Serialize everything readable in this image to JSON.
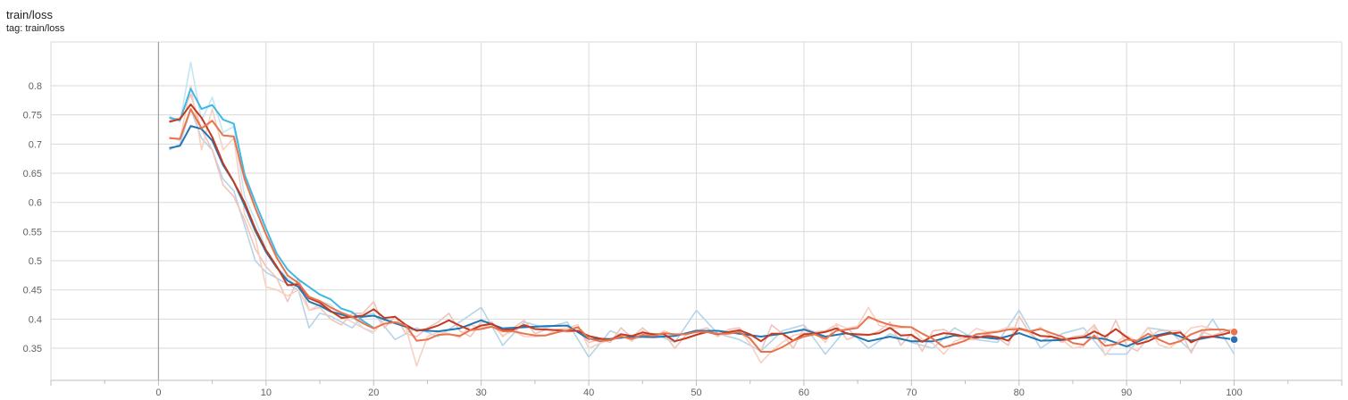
{
  "header": {
    "title": "train/loss",
    "tag": "tag: train/loss"
  },
  "chart_data": {
    "type": "line",
    "title": "train/loss",
    "xlabel": "",
    "ylabel": "",
    "xlim": [
      -10,
      110
    ],
    "ylim": [
      0.295,
      0.875
    ],
    "x_ticks": [
      0,
      10,
      20,
      30,
      40,
      50,
      60,
      70,
      80,
      90,
      100
    ],
    "y_ticks": [
      0.35,
      0.4,
      0.45,
      0.5,
      0.55,
      0.6,
      0.65,
      0.7,
      0.75,
      0.8
    ],
    "grid": true,
    "smoothing": true,
    "series": [
      {
        "color": "#1f77b4",
        "raw_color": "#b6d4e8",
        "x": [
          1,
          2,
          3,
          4,
          5,
          6,
          7,
          8,
          9,
          10,
          11,
          12,
          13,
          14,
          15,
          16,
          17,
          18,
          19,
          20,
          22,
          24,
          26,
          28,
          30,
          32,
          34,
          36,
          38,
          40,
          42,
          44,
          46,
          48,
          50,
          52,
          54,
          56,
          58,
          60,
          62,
          64,
          66,
          68,
          70,
          72,
          74,
          76,
          78,
          80,
          82,
          84,
          86,
          88,
          90,
          92,
          94,
          96,
          98,
          100
        ],
        "smoothed": [
          0.693,
          0.697,
          0.731,
          0.726,
          0.706,
          0.664,
          0.635,
          0.595,
          0.551,
          0.515,
          0.488,
          0.466,
          0.455,
          0.43,
          0.423,
          0.413,
          0.408,
          0.403,
          0.404,
          0.406,
          0.393,
          0.381,
          0.379,
          0.384,
          0.398,
          0.384,
          0.386,
          0.388,
          0.389,
          0.366,
          0.366,
          0.37,
          0.369,
          0.371,
          0.38,
          0.38,
          0.375,
          0.37,
          0.375,
          0.382,
          0.37,
          0.376,
          0.362,
          0.37,
          0.362,
          0.362,
          0.372,
          0.37,
          0.366,
          0.376,
          0.363,
          0.364,
          0.369,
          0.366,
          0.353,
          0.369,
          0.377,
          0.363,
          0.37,
          0.365
        ],
        "raw": [
          0.69,
          0.7,
          0.76,
          0.71,
          0.69,
          0.64,
          0.62,
          0.56,
          0.5,
          0.48,
          0.47,
          0.46,
          0.45,
          0.385,
          0.41,
          0.405,
          0.395,
          0.385,
          0.405,
          0.41,
          0.365,
          0.385,
          0.37,
          0.395,
          0.42,
          0.355,
          0.395,
          0.385,
          0.395,
          0.335,
          0.38,
          0.365,
          0.375,
          0.36,
          0.415,
          0.375,
          0.365,
          0.345,
          0.38,
          0.39,
          0.34,
          0.385,
          0.35,
          0.375,
          0.36,
          0.35,
          0.385,
          0.365,
          0.36,
          0.415,
          0.35,
          0.375,
          0.385,
          0.34,
          0.34,
          0.385,
          0.38,
          0.345,
          0.4,
          0.34
        ]
      },
      {
        "color": "#3fb8e3",
        "raw_color": "#c3e6f4",
        "x": [
          1,
          2,
          3,
          4,
          5,
          6,
          7,
          8,
          9,
          10,
          11,
          12,
          13,
          14,
          15,
          16,
          17,
          18,
          19,
          20
        ],
        "smoothed": [
          0.745,
          0.741,
          0.795,
          0.76,
          0.767,
          0.742,
          0.735,
          0.648,
          0.6,
          0.555,
          0.512,
          0.485,
          0.468,
          0.455,
          0.442,
          0.434,
          0.418,
          0.412,
          0.397,
          0.385
        ],
        "raw": [
          0.748,
          0.738,
          0.84,
          0.74,
          0.78,
          0.72,
          0.73,
          0.61,
          0.57,
          0.52,
          0.49,
          0.47,
          0.455,
          0.44,
          0.43,
          0.425,
          0.405,
          0.405,
          0.385,
          0.375
        ]
      },
      {
        "color": "#c23b22",
        "raw_color": "#efc4bb",
        "x": [
          1,
          2,
          3,
          4,
          5,
          6,
          7,
          8,
          9,
          10,
          11,
          12,
          13,
          14,
          15,
          16,
          17,
          18,
          19,
          20,
          21,
          22,
          23,
          24,
          25,
          26,
          27,
          28,
          29,
          30,
          31,
          32,
          33,
          34,
          35,
          36,
          37,
          38,
          39,
          40,
          41,
          42,
          43,
          44,
          45,
          46,
          47,
          48,
          49,
          50,
          51,
          52,
          53,
          54,
          55,
          56,
          57,
          58,
          59,
          60,
          61,
          62,
          63,
          64,
          65,
          66,
          67,
          68,
          69,
          70,
          71,
          72,
          73,
          74,
          75,
          76,
          77,
          78,
          79,
          80,
          81,
          82,
          83,
          84,
          85,
          86,
          87,
          88,
          89,
          90,
          91,
          92,
          93,
          94,
          95,
          96,
          97,
          98,
          99,
          100
        ],
        "smoothed": [
          0.738,
          0.743,
          0.768,
          0.745,
          0.712,
          0.667,
          0.635,
          0.6,
          0.555,
          0.518,
          0.49,
          0.458,
          0.46,
          0.436,
          0.428,
          0.414,
          0.402,
          0.404,
          0.406,
          0.417,
          0.402,
          0.404,
          0.39,
          0.38,
          0.383,
          0.389,
          0.398,
          0.389,
          0.381,
          0.389,
          0.392,
          0.381,
          0.382,
          0.39,
          0.383,
          0.382,
          0.381,
          0.38,
          0.38,
          0.371,
          0.367,
          0.364,
          0.374,
          0.371,
          0.377,
          0.374,
          0.374,
          0.362,
          0.367,
          0.373,
          0.378,
          0.374,
          0.378,
          0.381,
          0.374,
          0.362,
          0.375,
          0.375,
          0.363,
          0.374,
          0.375,
          0.378,
          0.384,
          0.375,
          0.374,
          0.373,
          0.376,
          0.385,
          0.372,
          0.373,
          0.361,
          0.371,
          0.376,
          0.374,
          0.37,
          0.368,
          0.371,
          0.369,
          0.363,
          0.384,
          0.379,
          0.371,
          0.37,
          0.365,
          0.367,
          0.369,
          0.379,
          0.37,
          0.383,
          0.369,
          0.357,
          0.362,
          0.371,
          0.375,
          0.377,
          0.36,
          0.369,
          0.37,
          0.374,
          0.379
        ],
        "raw": [
          0.74,
          0.745,
          0.785,
          0.725,
          0.69,
          0.63,
          0.61,
          0.57,
          0.52,
          0.49,
          0.47,
          0.43,
          0.47,
          0.415,
          0.42,
          0.4,
          0.39,
          0.41,
          0.41,
          0.43,
          0.385,
          0.405,
          0.375,
          0.37,
          0.385,
          0.395,
          0.41,
          0.38,
          0.37,
          0.395,
          0.395,
          0.37,
          0.385,
          0.398,
          0.375,
          0.382,
          0.38,
          0.378,
          0.38,
          0.36,
          0.365,
          0.36,
          0.385,
          0.368,
          0.385,
          0.37,
          0.375,
          0.35,
          0.372,
          0.38,
          0.385,
          0.37,
          0.382,
          0.385,
          0.365,
          0.345,
          0.39,
          0.375,
          0.35,
          0.385,
          0.378,
          0.38,
          0.39,
          0.365,
          0.372,
          0.372,
          0.38,
          0.395,
          0.355,
          0.375,
          0.345,
          0.38,
          0.382,
          0.372,
          0.365,
          0.365,
          0.375,
          0.368,
          0.355,
          0.405,
          0.375,
          0.362,
          0.37,
          0.36,
          0.37,
          0.372,
          0.39,
          0.36,
          0.398,
          0.355,
          0.345,
          0.368,
          0.38,
          0.38,
          0.38,
          0.342,
          0.378,
          0.372,
          0.378,
          0.384
        ]
      },
      {
        "color": "#e8744e",
        "raw_color": "#f8d0c2",
        "x": [
          1,
          2,
          3,
          4,
          5,
          6,
          7,
          8,
          9,
          10,
          11,
          12,
          13,
          14,
          15,
          16,
          17,
          18,
          19,
          20,
          21,
          22,
          23,
          24,
          25,
          26,
          27,
          28,
          29,
          30,
          31,
          32,
          33,
          34,
          35,
          36,
          37,
          38,
          39,
          40,
          41,
          42,
          43,
          44,
          45,
          46,
          47,
          48,
          49,
          50,
          51,
          52,
          53,
          54,
          55,
          56,
          57,
          58,
          59,
          60,
          61,
          62,
          63,
          64,
          65,
          66,
          67,
          68,
          69,
          70,
          71,
          72,
          73,
          74,
          75,
          76,
          77,
          78,
          79,
          80,
          81,
          82,
          83,
          84,
          85,
          86,
          87,
          88,
          89,
          90,
          91,
          92,
          93,
          94,
          95,
          96,
          97,
          98,
          99,
          100
        ],
        "smoothed": [
          0.71,
          0.709,
          0.76,
          0.727,
          0.74,
          0.715,
          0.713,
          0.64,
          0.59,
          0.545,
          0.505,
          0.475,
          0.462,
          0.438,
          0.431,
          0.42,
          0.411,
          0.404,
          0.393,
          0.384,
          0.392,
          0.395,
          0.389,
          0.363,
          0.365,
          0.373,
          0.374,
          0.371,
          0.381,
          0.383,
          0.387,
          0.379,
          0.379,
          0.375,
          0.372,
          0.372,
          0.377,
          0.381,
          0.386,
          0.367,
          0.362,
          0.364,
          0.37,
          0.366,
          0.373,
          0.371,
          0.376,
          0.374,
          0.374,
          0.378,
          0.378,
          0.375,
          0.375,
          0.378,
          0.367,
          0.344,
          0.344,
          0.352,
          0.363,
          0.37,
          0.374,
          0.366,
          0.38,
          0.382,
          0.385,
          0.404,
          0.396,
          0.39,
          0.387,
          0.386,
          0.375,
          0.366,
          0.352,
          0.357,
          0.363,
          0.374,
          0.376,
          0.378,
          0.382,
          0.383,
          0.379,
          0.383,
          0.376,
          0.37,
          0.359,
          0.356,
          0.372,
          0.354,
          0.357,
          0.365,
          0.363,
          0.375,
          0.365,
          0.357,
          0.362,
          0.374,
          0.381,
          0.382,
          0.382,
          0.378
        ],
        "raw": [
          0.712,
          0.706,
          0.8,
          0.69,
          0.76,
          0.69,
          0.71,
          0.58,
          0.54,
          0.455,
          0.45,
          0.44,
          0.45,
          0.415,
          0.425,
          0.412,
          0.405,
          0.395,
          0.385,
          0.378,
          0.398,
          0.395,
          0.385,
          0.32,
          0.37,
          0.378,
          0.375,
          0.368,
          0.39,
          0.385,
          0.39,
          0.372,
          0.38,
          0.37,
          0.37,
          0.372,
          0.382,
          0.385,
          0.39,
          0.35,
          0.358,
          0.365,
          0.375,
          0.362,
          0.38,
          0.368,
          0.38,
          0.372,
          0.374,
          0.382,
          0.378,
          0.372,
          0.375,
          0.38,
          0.358,
          0.325,
          0.345,
          0.36,
          0.372,
          0.376,
          0.378,
          0.36,
          0.392,
          0.384,
          0.388,
          0.42,
          0.389,
          0.385,
          0.385,
          0.386,
          0.365,
          0.358,
          0.34,
          0.362,
          0.368,
          0.384,
          0.378,
          0.38,
          0.386,
          0.384,
          0.376,
          0.386,
          0.37,
          0.365,
          0.35,
          0.353,
          0.386,
          0.338,
          0.36,
          0.372,
          0.362,
          0.386,
          0.356,
          0.35,
          0.366,
          0.385,
          0.388,
          0.383,
          0.382,
          0.375
        ]
      }
    ],
    "end_markers": [
      {
        "x": 100,
        "y": 0.378,
        "color": "#e8744e"
      },
      {
        "x": 100,
        "y": 0.365,
        "color": "#2c6fb2"
      }
    ]
  }
}
